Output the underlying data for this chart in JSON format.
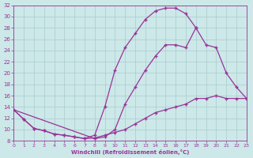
{
  "bg_color": "#cce8e8",
  "grid_color": "#aacccc",
  "line_color": "#993399",
  "xlabel": "Windchill (Refroidissement éolien,°C)",
  "xlim": [
    0,
    23
  ],
  "ylim": [
    8,
    32
  ],
  "xticks": [
    0,
    1,
    2,
    3,
    4,
    5,
    6,
    7,
    8,
    9,
    10,
    11,
    12,
    13,
    14,
    15,
    16,
    17,
    18,
    19,
    20,
    21,
    22,
    23
  ],
  "yticks": [
    8,
    10,
    12,
    14,
    16,
    18,
    20,
    22,
    24,
    26,
    28,
    30,
    32
  ],
  "curve_upper_x": [
    0,
    1,
    2,
    3,
    4,
    5,
    6,
    7,
    8,
    9,
    10,
    11,
    12,
    13,
    14,
    15,
    16,
    17,
    18
  ],
  "curve_upper_y": [
    13.5,
    11.8,
    10.2,
    9.8,
    9.2,
    9.0,
    8.7,
    8.4,
    9.0,
    14.0,
    20.5,
    24.5,
    27.0,
    29.5,
    31.0,
    31.5,
    31.5,
    30.5,
    28.0
  ],
  "curve_middle_x": [
    0,
    8,
    9,
    10,
    11,
    12,
    13,
    14,
    15,
    16,
    17,
    18,
    19,
    20,
    21,
    22,
    23
  ],
  "curve_middle_y": [
    13.5,
    8.4,
    8.7,
    10.0,
    14.5,
    17.5,
    20.5,
    23.0,
    25.0,
    25.0,
    24.5,
    28.0,
    25.0,
    24.5,
    20.0,
    17.5,
    15.5
  ],
  "curve_lower_x": [
    0,
    1,
    2,
    3,
    4,
    5,
    6,
    7,
    8,
    9,
    10,
    11,
    12,
    13,
    14,
    15,
    16,
    17,
    18,
    19,
    20,
    21,
    22,
    23
  ],
  "curve_lower_y": [
    13.5,
    11.8,
    10.2,
    9.8,
    9.2,
    9.0,
    8.7,
    8.4,
    8.5,
    9.0,
    9.5,
    10.0,
    11.0,
    12.0,
    13.0,
    13.5,
    14.0,
    14.5,
    15.5,
    15.5,
    16.0,
    15.5,
    15.5,
    15.5
  ]
}
